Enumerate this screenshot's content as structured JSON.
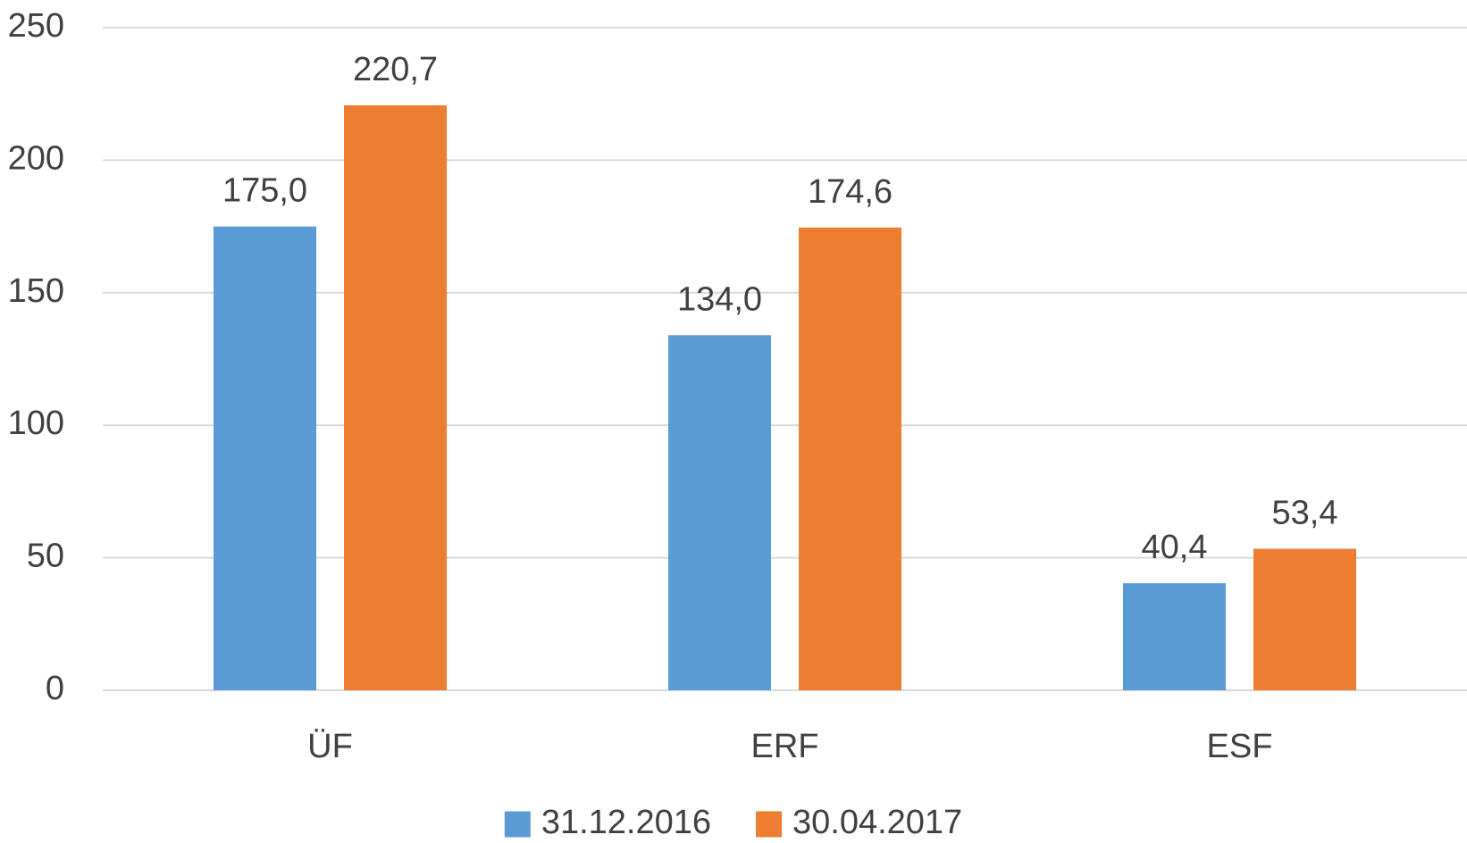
{
  "chart_data": {
    "type": "bar",
    "categories": [
      "ÜF",
      "ERF",
      "ESF"
    ],
    "series": [
      {
        "name": "31.12.2016",
        "color": "#5b9bd5",
        "values": [
          175.0,
          134.0,
          40.4
        ],
        "value_labels": [
          "175,0",
          "134,0",
          "40,4"
        ]
      },
      {
        "name": "30.04.2017",
        "color": "#ed7d31",
        "values": [
          220.7,
          174.6,
          53.4
        ],
        "value_labels": [
          "220,7",
          "174,6",
          "53,4"
        ]
      }
    ],
    "ylim": [
      0,
      250
    ],
    "yticks": [
      0,
      50,
      100,
      150,
      200,
      250
    ],
    "grid": true,
    "legend": "bottom"
  }
}
